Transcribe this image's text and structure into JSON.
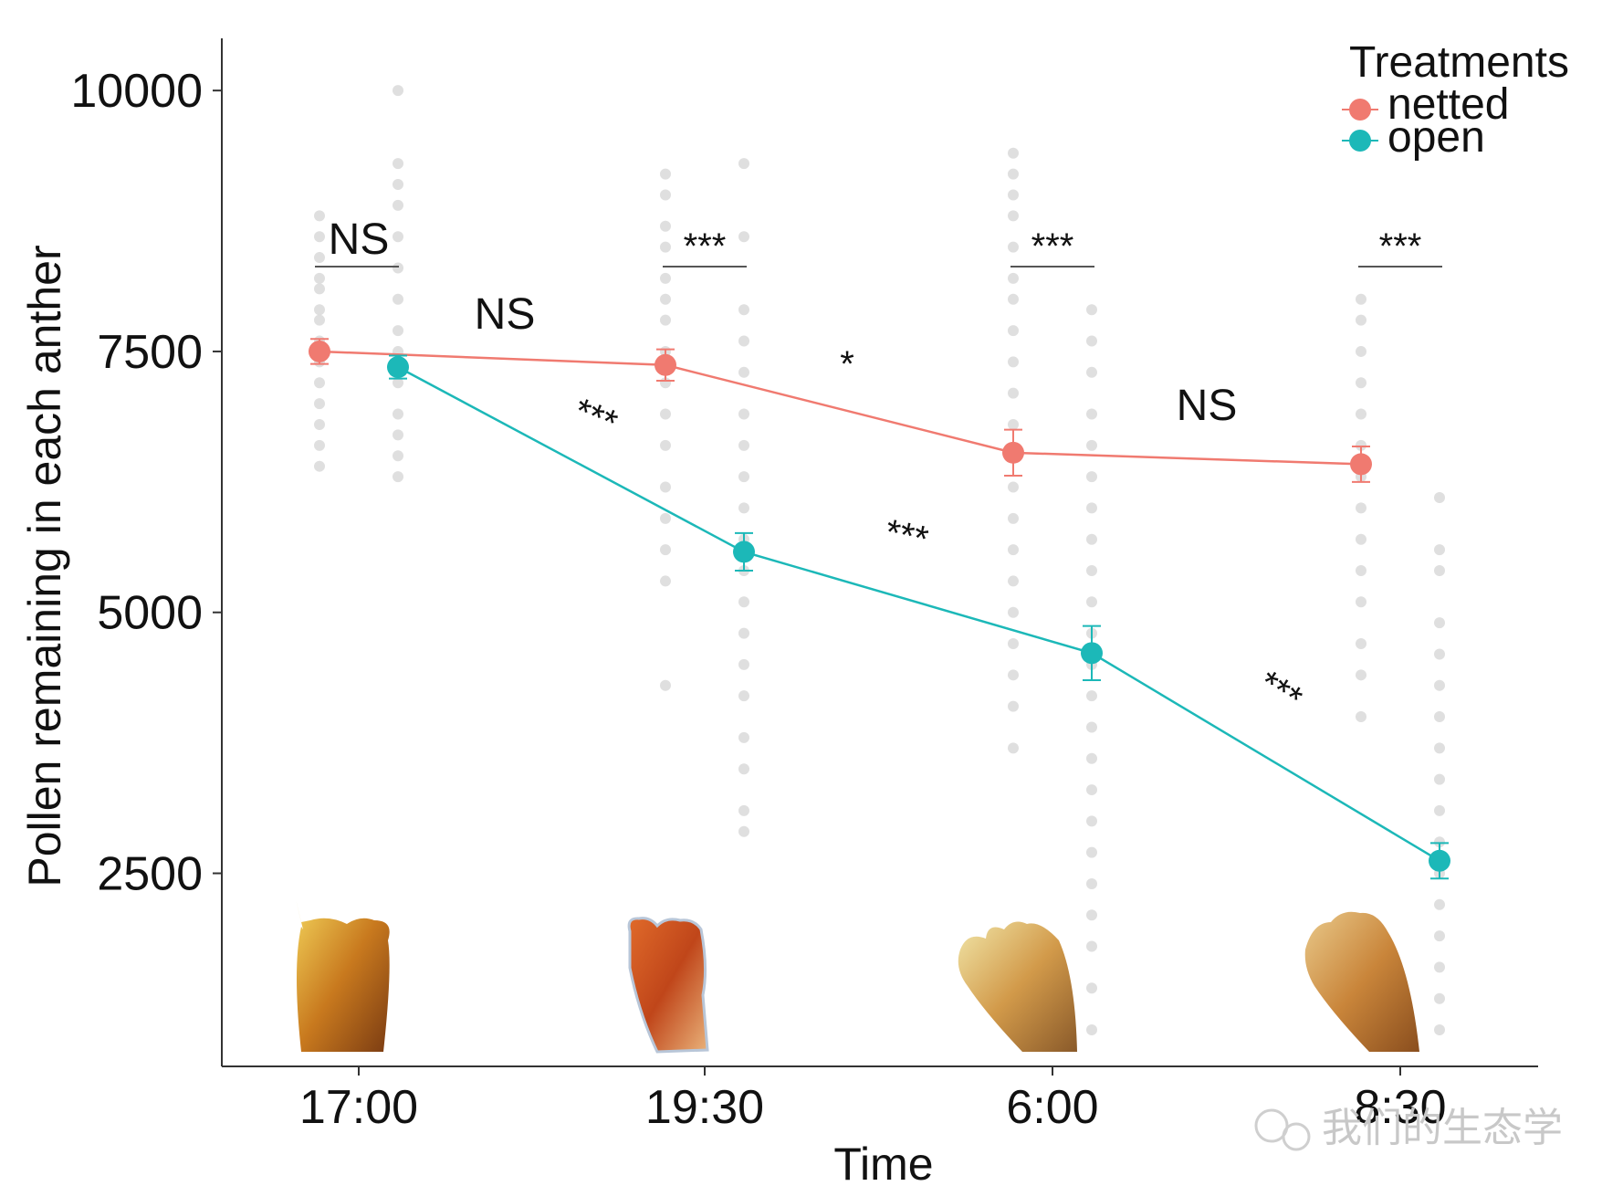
{
  "chart_data": {
    "type": "line",
    "xlabel": "Time",
    "ylabel": "Pollen remaining in each anther",
    "categories": [
      "17:00",
      "19:30",
      "6:00",
      "8:30"
    ],
    "y_ticks": [
      "2500",
      "5000",
      "7500",
      "10000"
    ],
    "ylim": [
      650,
      10500
    ],
    "legend": {
      "title": "Treatments",
      "placement": "top-right",
      "entries": [
        "netted",
        "open"
      ]
    },
    "series": [
      {
        "name": "netted",
        "color": "#f07a70",
        "values": [
          7500,
          7370,
          6530,
          6420
        ],
        "error": [
          120,
          150,
          220,
          170
        ],
        "raw_points": [
          [
            8800,
            8600,
            8400,
            8200,
            8100,
            7900,
            7800,
            7600,
            7400,
            7200,
            7000,
            6800,
            6600,
            6400
          ],
          [
            9200,
            9000,
            8700,
            8500,
            8200,
            8000,
            7800,
            7500,
            7200,
            6900,
            6600,
            6200,
            5900,
            5600,
            5300,
            4300
          ],
          [
            9400,
            9200,
            9000,
            8800,
            8500,
            8200,
            8000,
            7700,
            7400,
            7100,
            6800,
            6500,
            6200,
            5900,
            5600,
            5300,
            5000,
            4700,
            4400,
            4100,
            3700
          ],
          [
            8000,
            7800,
            7500,
            7200,
            6900,
            6600,
            6300,
            6000,
            5700,
            5400,
            5100,
            4700,
            4400,
            4000
          ]
        ]
      },
      {
        "name": "open",
        "color": "#1cb8b8",
        "values": [
          7350,
          5580,
          4610,
          2620
        ],
        "error": [
          110,
          180,
          260,
          170
        ],
        "raw_points": [
          [
            10000,
            9300,
            9100,
            8900,
            8600,
            8300,
            8000,
            7700,
            7500,
            7200,
            6900,
            6700,
            6500,
            6300
          ],
          [
            9300,
            8600,
            7900,
            7600,
            7300,
            6900,
            6600,
            6300,
            6000,
            5700,
            5400,
            5100,
            4800,
            4500,
            4200,
            3800,
            3500,
            3100,
            2900
          ],
          [
            7900,
            7600,
            7300,
            6900,
            6600,
            6300,
            6000,
            5700,
            5400,
            5100,
            4800,
            4500,
            4200,
            3900,
            3600,
            3300,
            3000,
            2700,
            2400,
            2100,
            1800,
            1400,
            1000
          ],
          [
            6100,
            5600,
            5400,
            4900,
            4600,
            4300,
            4000,
            3700,
            3400,
            3100,
            2800,
            2500,
            2200,
            1900,
            1600,
            1300,
            1000
          ]
        ]
      }
    ],
    "annotations": {
      "between_treatments": [
        "NS",
        "***",
        "***",
        "***"
      ],
      "netted_segments": [
        "NS",
        "*",
        "NS"
      ],
      "open_segments": [
        "***",
        "***",
        "***"
      ]
    }
  },
  "watermark": "我们的生态学"
}
